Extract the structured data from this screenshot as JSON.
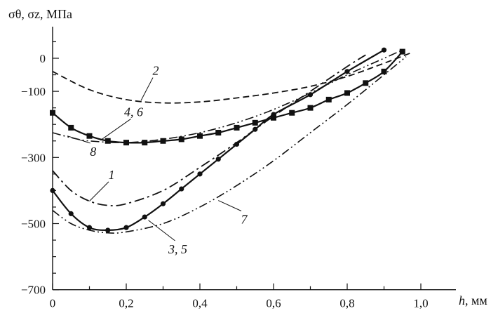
{
  "chart_data": {
    "type": "line",
    "ylabel": "σθ, σz, МПа",
    "xlabel_var": "h",
    "xlabel_unit": ", мм",
    "xlim": [
      0,
      1.05
    ],
    "ylim": [
      -700,
      100
    ],
    "x_ticks": [
      {
        "value": 0,
        "label": "0"
      },
      {
        "value": 0.2,
        "label": "0,2"
      },
      {
        "value": 0.4,
        "label": "0,4"
      },
      {
        "value": 0.6,
        "label": "0,6"
      },
      {
        "value": 0.8,
        "label": "0,8"
      },
      {
        "value": 1.0,
        "label": "1,0"
      }
    ],
    "y_ticks": [
      {
        "value": 0,
        "label": "0"
      },
      {
        "value": -100,
        "label": "-100"
      },
      {
        "value": -300,
        "label": "-300"
      },
      {
        "value": -500,
        "label": "-500"
      },
      {
        "value": -700,
        "label": "-700"
      }
    ],
    "y_minor_ticks": [
      50,
      -50,
      -150,
      -200,
      -250,
      -350,
      -400,
      -450,
      -550,
      -600,
      -650
    ],
    "grid": false,
    "series": [
      {
        "name": "1",
        "style": "dashdot",
        "marker": "none",
        "x": [
          0,
          0.05,
          0.1,
          0.15,
          0.2,
          0.3,
          0.4,
          0.5,
          0.6,
          0.7,
          0.8,
          0.85
        ],
        "y": [
          -340,
          -400,
          -432,
          -445,
          -440,
          -400,
          -330,
          -255,
          -175,
          -100,
          -25,
          10
        ]
      },
      {
        "name": "2",
        "style": "dashed",
        "marker": "none",
        "x": [
          0,
          0.1,
          0.2,
          0.3,
          0.4,
          0.5,
          0.6,
          0.7,
          0.8,
          0.9,
          0.97
        ],
        "y": [
          -40,
          -95,
          -125,
          -135,
          -132,
          -120,
          -105,
          -85,
          -55,
          -15,
          15
        ]
      },
      {
        "name": "3, 5",
        "style": "solid",
        "marker": "circle",
        "x": [
          0,
          0.05,
          0.1,
          0.15,
          0.2,
          0.25,
          0.3,
          0.35,
          0.4,
          0.45,
          0.5,
          0.55,
          0.6,
          0.7,
          0.8,
          0.9
        ],
        "y": [
          -400,
          -470,
          -512,
          -520,
          -512,
          -480,
          -440,
          -395,
          -350,
          -305,
          -260,
          -215,
          -170,
          -110,
          -40,
          25
        ]
      },
      {
        "name": "4, 6",
        "style": "solid",
        "marker": "square",
        "x": [
          0,
          0.05,
          0.1,
          0.15,
          0.2,
          0.25,
          0.3,
          0.35,
          0.4,
          0.45,
          0.5,
          0.55,
          0.6,
          0.65,
          0.7,
          0.75,
          0.8,
          0.85,
          0.9,
          0.95
        ],
        "y": [
          -165,
          -210,
          -235,
          -250,
          -255,
          -255,
          -250,
          -245,
          -235,
          -225,
          -210,
          -195,
          -180,
          -165,
          -150,
          -125,
          -105,
          -75,
          -40,
          20
        ]
      },
      {
        "name": "7",
        "style": "dashdotdot",
        "marker": "none",
        "x": [
          0,
          0.05,
          0.1,
          0.15,
          0.2,
          0.3,
          0.4,
          0.5,
          0.6,
          0.7,
          0.8,
          0.9,
          0.96
        ],
        "y": [
          -460,
          -500,
          -520,
          -528,
          -525,
          -500,
          -450,
          -385,
          -310,
          -225,
          -140,
          -50,
          5
        ]
      },
      {
        "name": "8",
        "style": "dashdotdot",
        "marker": "none",
        "x": [
          0,
          0.05,
          0.1,
          0.2,
          0.3,
          0.4,
          0.5,
          0.6,
          0.7,
          0.8,
          0.9,
          0.95
        ],
        "y": [
          -225,
          -240,
          -250,
          -255,
          -245,
          -225,
          -195,
          -155,
          -105,
          -50,
          0,
          25
        ]
      }
    ],
    "annotations": [
      {
        "text": "2",
        "x": 0.28,
        "y": -50,
        "to_x": 0.24,
        "to_y": -128
      },
      {
        "text": "4, 6",
        "x": 0.22,
        "y": -175,
        "to_x": 0.13,
        "to_y": -248
      },
      {
        "text": "8",
        "x": 0.11,
        "y": -295,
        "to_x": 0.04,
        "to_y": -235
      },
      {
        "text": "1",
        "x": 0.16,
        "y": -365,
        "to_x": 0.1,
        "to_y": -432
      },
      {
        "text": "3, 5",
        "x": 0.34,
        "y": -590,
        "to_x": 0.26,
        "to_y": -490
      },
      {
        "text": "7",
        "x": 0.52,
        "y": -500,
        "to_x": 0.45,
        "to_y": -430
      }
    ]
  }
}
